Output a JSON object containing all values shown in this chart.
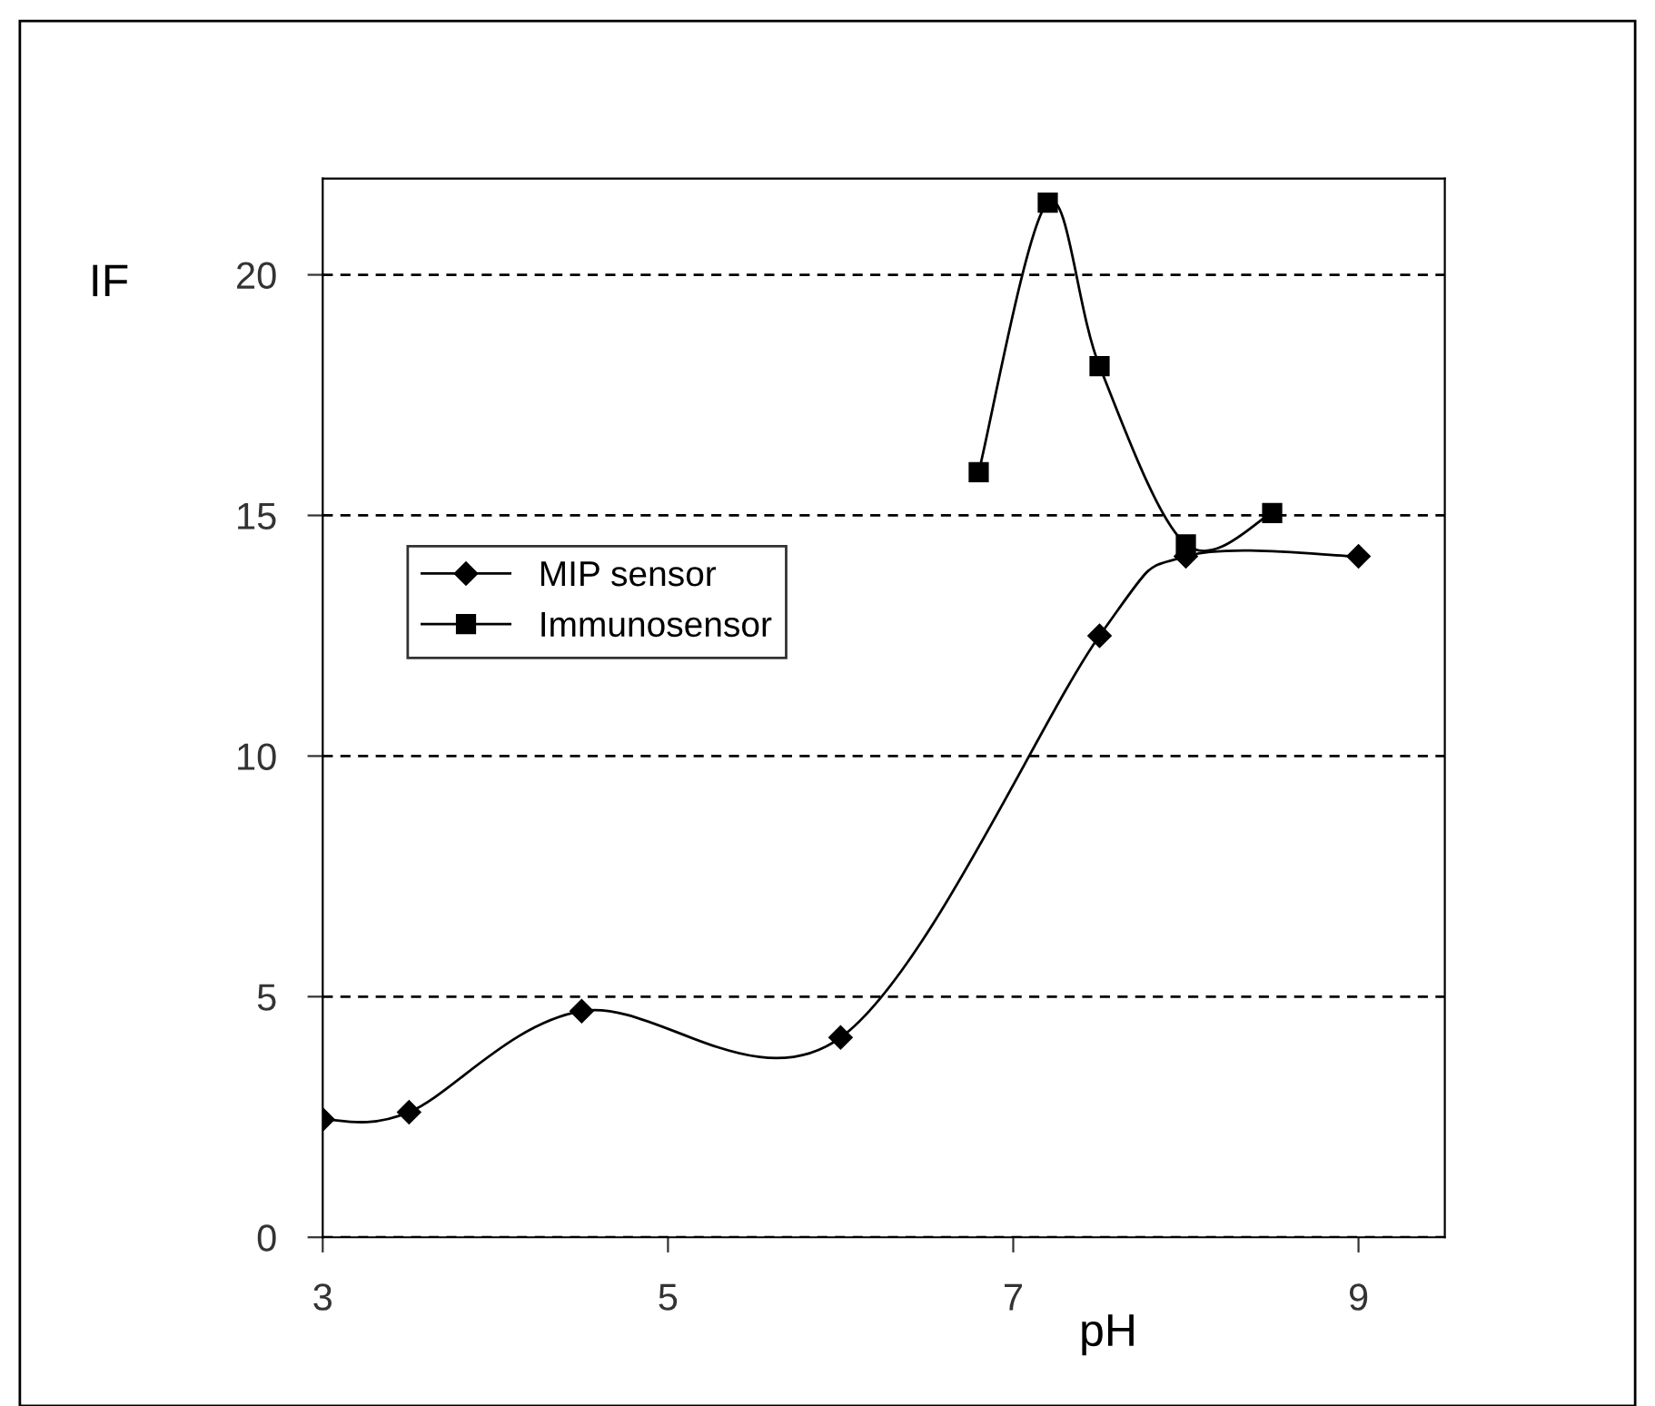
{
  "chart_data": {
    "type": "line",
    "xlabel": "pH",
    "ylabel": "IF",
    "xlim": [
      3,
      9.5
    ],
    "xticks": [
      3,
      5,
      7,
      9
    ],
    "ylim": [
      0,
      22
    ],
    "yticks": [
      0,
      5,
      10,
      15,
      20
    ],
    "grid": "y",
    "legend": "left",
    "line_style": "solid",
    "series": [
      {
        "name": "MIP sensor",
        "color": "#000000",
        "marker": "diamond",
        "x": [
          3,
          3.5,
          4.5,
          6,
          7.5,
          8,
          9
        ],
        "values": [
          2.45,
          2.6,
          4.7,
          4.15,
          12.5,
          14.15,
          14.15
        ]
      },
      {
        "name": "Immunosensor",
        "color": "#000000",
        "marker": "square",
        "x": [
          6.8,
          7.2,
          7.5,
          8,
          8.5
        ],
        "values": [
          15.9,
          21.5,
          18.1,
          14.4,
          15.05
        ]
      }
    ]
  }
}
